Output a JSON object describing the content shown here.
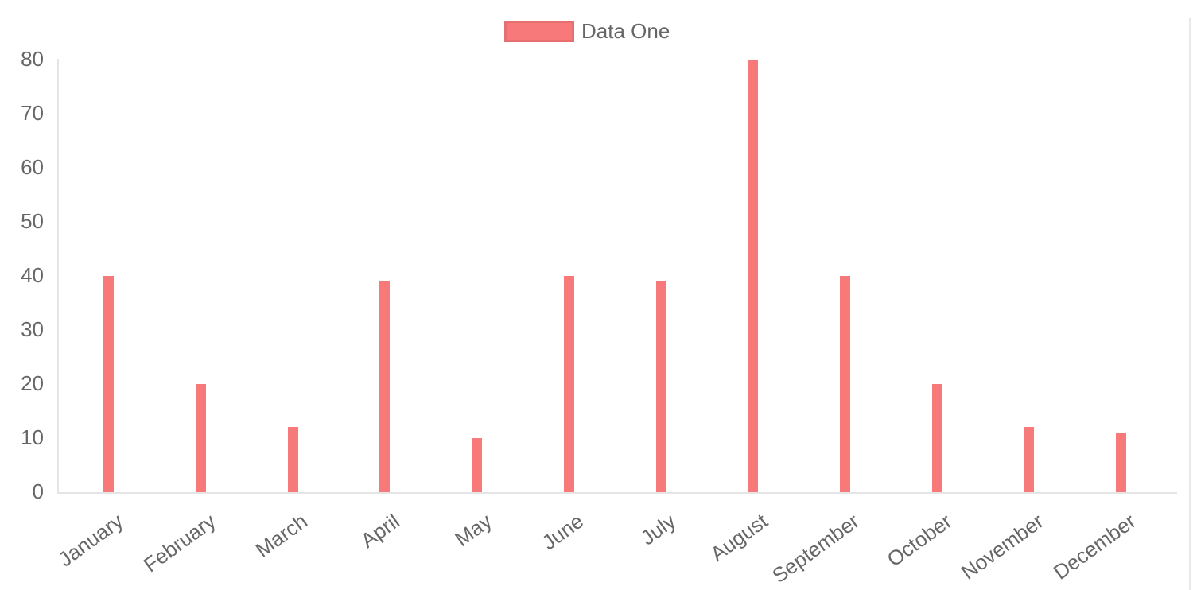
{
  "chart_data": {
    "type": "bar",
    "title": "",
    "categories": [
      "January",
      "February",
      "March",
      "April",
      "May",
      "June",
      "July",
      "August",
      "September",
      "October",
      "November",
      "December"
    ],
    "series": [
      {
        "name": "Data One",
        "values": [
          40,
          20,
          12,
          39,
          10,
          40,
          39,
          80,
          40,
          20,
          12,
          11
        ]
      }
    ],
    "xlabel": "",
    "ylabel": "",
    "ylim": [
      0,
      80
    ],
    "yticks": [
      0,
      10,
      20,
      30,
      40,
      50,
      60,
      70,
      80
    ],
    "grid": false,
    "legend_position": "top-center",
    "colors": {
      "bar": "#f87979",
      "text": "#666666",
      "axis": "#e5e5e5"
    }
  }
}
